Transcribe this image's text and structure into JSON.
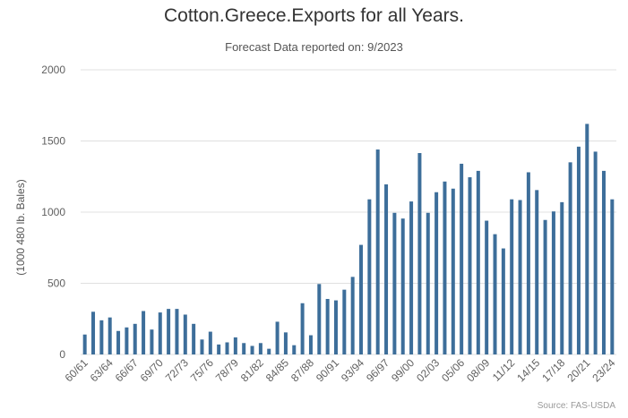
{
  "chart_data": {
    "type": "bar",
    "title": "Cotton.Greece.Exports for all Years.",
    "subtitle": "Forecast Data reported on: 9/2023",
    "ylabel": "(1000 480 lb. Bales)",
    "xlabel": "",
    "ylim": [
      0,
      2000
    ],
    "yticks": [
      0,
      500,
      1000,
      1500,
      2000
    ],
    "grid": true,
    "legend": "none",
    "credit": "Source: FAS-USDA",
    "bar_color": "#3d6e9a",
    "grid_color": "#e0e0e0",
    "categories": [
      "60/61",
      "61/62",
      "62/63",
      "63/64",
      "64/65",
      "65/66",
      "66/67",
      "67/68",
      "68/69",
      "69/70",
      "70/71",
      "71/72",
      "72/73",
      "73/74",
      "74/75",
      "75/76",
      "76/77",
      "77/78",
      "78/79",
      "79/80",
      "80/81",
      "81/82",
      "82/83",
      "83/84",
      "84/85",
      "85/86",
      "86/87",
      "87/88",
      "88/89",
      "89/90",
      "90/91",
      "91/92",
      "92/93",
      "93/94",
      "94/95",
      "95/96",
      "96/97",
      "97/98",
      "98/99",
      "99/00",
      "00/01",
      "01/02",
      "02/03",
      "03/04",
      "04/05",
      "05/06",
      "06/07",
      "07/08",
      "08/09",
      "09/10",
      "10/11",
      "11/12",
      "12/13",
      "13/14",
      "14/15",
      "15/16",
      "16/17",
      "17/18",
      "18/19",
      "19/20",
      "20/21",
      "21/22",
      "22/23",
      "23/24"
    ],
    "tick_labels": [
      "60/61",
      "63/64",
      "66/67",
      "69/70",
      "72/73",
      "75/76",
      "78/79",
      "81/82",
      "84/85",
      "87/88",
      "90/91",
      "93/94",
      "96/97",
      "99/00",
      "02/03",
      "05/06",
      "08/09",
      "11/12",
      "14/15",
      "17/18",
      "20/21",
      "23/24"
    ],
    "values": [
      140,
      300,
      240,
      260,
      165,
      190,
      215,
      305,
      175,
      295,
      320,
      320,
      280,
      215,
      105,
      160,
      70,
      85,
      120,
      80,
      60,
      80,
      40,
      230,
      155,
      65,
      360,
      135,
      495,
      390,
      380,
      455,
      545,
      770,
      1090,
      1440,
      1195,
      995,
      955,
      1075,
      1415,
      995,
      1140,
      1215,
      1165,
      1340,
      1245,
      1290,
      940,
      845,
      745,
      1090,
      1085,
      1280,
      1155,
      945,
      1005,
      1070,
      1350,
      1460,
      1620,
      1425,
      1290,
      1090
    ]
  }
}
